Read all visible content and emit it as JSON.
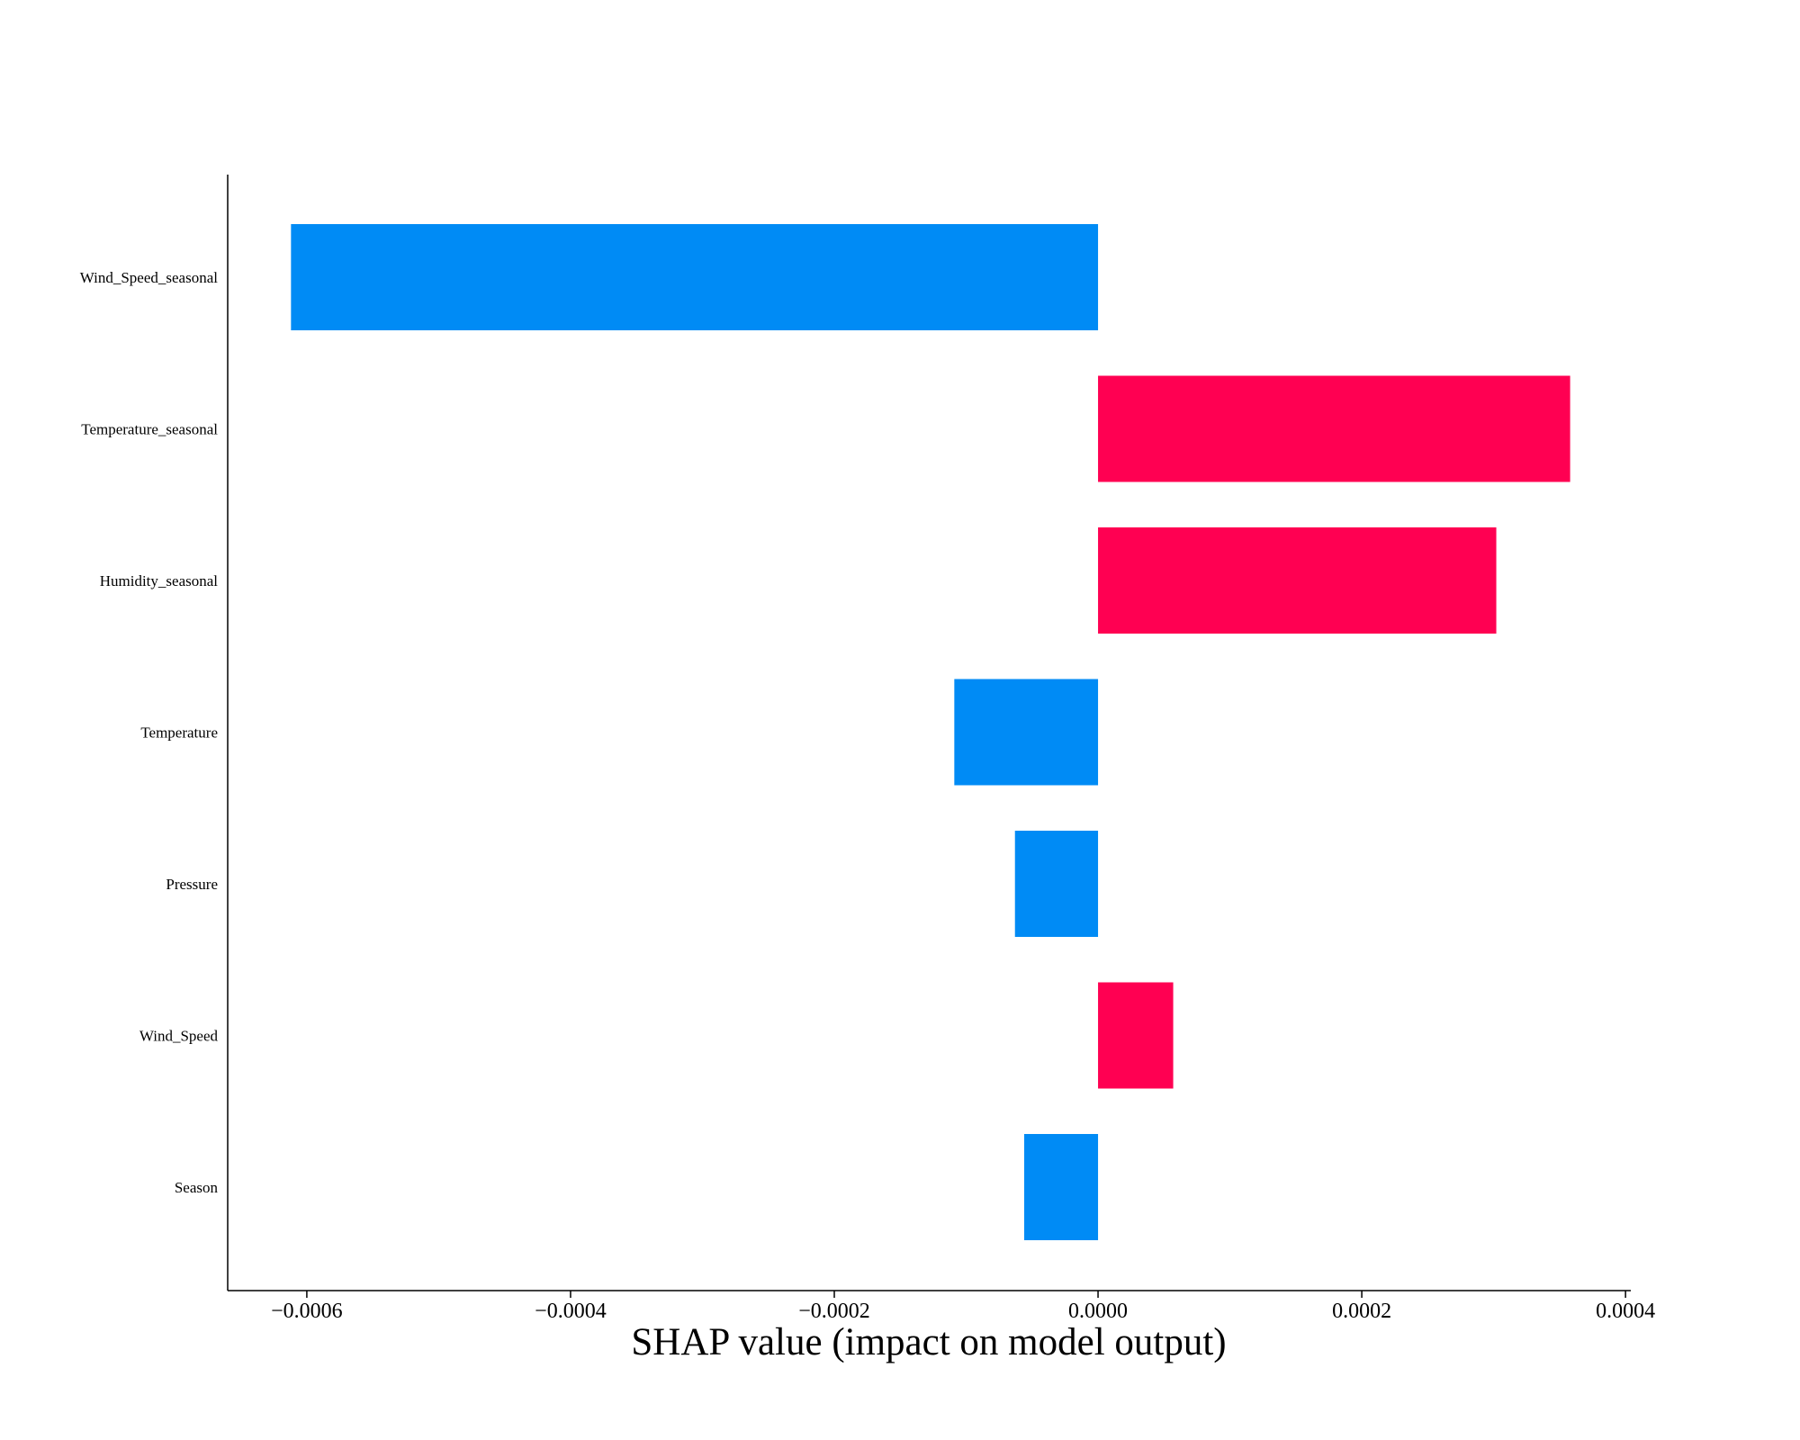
{
  "chart_data": {
    "type": "bar",
    "orientation": "horizontal",
    "title": "",
    "xlabel": "SHAP value (impact on model output)",
    "ylabel": "",
    "categories": [
      "Wind_Speed_seasonal",
      "Temperature_seasonal",
      "Humidity_seasonal",
      "Temperature",
      "Pressure",
      "Wind_Speed",
      "Season"
    ],
    "values": [
      -0.000612,
      0.000358,
      0.000302,
      -0.000109,
      -6.3e-05,
      5.7e-05,
      -5.6e-05
    ],
    "xlim": [
      -0.00066,
      0.000404
    ],
    "xticks": [
      -0.0006,
      -0.0004,
      -0.0002,
      0.0,
      0.0002,
      0.0004
    ],
    "xtick_labels": [
      "−0.0006",
      "−0.0004",
      "−0.0002",
      "0.0000",
      "0.0002",
      "0.0004"
    ],
    "grid": false,
    "colors": {
      "positive": "#ff0052",
      "negative": "#008bf5"
    }
  }
}
